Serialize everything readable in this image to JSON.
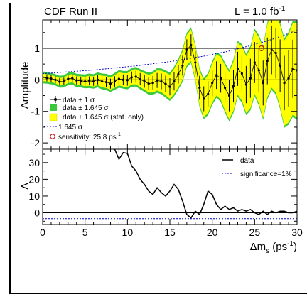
{
  "chart_data": [
    {
      "type": "line",
      "top_left_label": "CDF Run II",
      "top_right_label": "L = 1.0 fb",
      "top_right_label_sup": "-1",
      "ylabel": "Amplitude",
      "xlim": [
        0,
        30
      ],
      "ylim": [
        -2.2,
        1.9
      ],
      "y_ticks": [
        "1",
        "0",
        "-1",
        "-2"
      ],
      "y_tick_values": [
        1,
        0,
        -1,
        -2
      ],
      "reference_lines": [
        0,
        1
      ],
      "colors": {
        "band_1645": "#3cc83c",
        "band_stat": "#ffff00",
        "data": "#000000",
        "sigma_line": "#0000cc",
        "sensitivity": "#cc0000"
      },
      "legend": {
        "position": "lower-left",
        "items": [
          {
            "key": "data_err",
            "text": "data ± 1 σ"
          },
          {
            "key": "band_1645",
            "text": "data ± 1.645 σ"
          },
          {
            "key": "band_stat",
            "text": "data ± 1.645 σ (stat. only)"
          },
          {
            "key": "sigma_line",
            "text": "1.645 σ"
          },
          {
            "key": "sensitivity",
            "text": "sensitivity: 25.8 ps",
            "sup": "-1"
          }
        ]
      },
      "x": [
        0,
        0.5,
        1,
        1.5,
        2,
        2.5,
        3,
        3.5,
        4,
        4.5,
        5,
        5.5,
        6,
        6.5,
        7,
        7.5,
        8,
        8.5,
        9,
        9.5,
        10,
        10.5,
        11,
        11.5,
        12,
        12.5,
        13,
        13.5,
        14,
        14.5,
        15,
        15.5,
        16,
        16.5,
        17,
        17.5,
        18,
        18.5,
        19,
        19.5,
        20,
        20.5,
        21,
        21.5,
        22,
        22.5,
        23,
        23.5,
        24,
        24.5,
        25,
        25.5,
        26,
        26.5,
        27,
        27.5,
        28,
        28.5,
        29,
        29.5,
        30
      ],
      "amplitude": [
        0.08,
        0.06,
        0.04,
        0.0,
        -0.06,
        -0.05,
        0.03,
        0.05,
        -0.02,
        -0.03,
        -0.05,
        -0.03,
        -0.05,
        0.0,
        -0.05,
        -0.07,
        -0.12,
        -0.05,
        0.03,
        0.0,
        -0.01,
        0.08,
        0.1,
        0.02,
        -0.05,
        -0.12,
        -0.1,
        -0.02,
        -0.05,
        -0.13,
        -0.22,
        -0.05,
        0.18,
        0.45,
        0.95,
        1.1,
        0.55,
        -0.25,
        -0.6,
        -0.45,
        -0.1,
        0.15,
        0.05,
        -0.25,
        -0.5,
        -0.2,
        0.35,
        0.2,
        -0.15,
        0.05,
        0.55,
        0.3,
        -0.1,
        0.6,
        0.95,
        0.85,
        0.45,
        -0.1,
        0.05,
        0.35,
        0.3
      ],
      "stat_err_1645": [
        0.12,
        0.11,
        0.11,
        0.11,
        0.12,
        0.12,
        0.13,
        0.13,
        0.14,
        0.14,
        0.15,
        0.16,
        0.16,
        0.17,
        0.18,
        0.19,
        0.19,
        0.2,
        0.21,
        0.21,
        0.22,
        0.23,
        0.24,
        0.25,
        0.26,
        0.28,
        0.3,
        0.32,
        0.34,
        0.36,
        0.38,
        0.4,
        0.42,
        0.45,
        0.48,
        0.5,
        0.52,
        0.55,
        0.58,
        0.6,
        0.62,
        0.65,
        0.68,
        0.72,
        0.75,
        0.78,
        0.82,
        0.86,
        0.9,
        0.95,
        1.0,
        1.05,
        1.1,
        1.15,
        1.2,
        1.25,
        1.3,
        1.35,
        1.4,
        1.45,
        1.5
      ],
      "total_err_1645": [
        0.19,
        0.18,
        0.18,
        0.18,
        0.19,
        0.19,
        0.2,
        0.2,
        0.21,
        0.21,
        0.22,
        0.23,
        0.23,
        0.24,
        0.25,
        0.26,
        0.26,
        0.27,
        0.28,
        0.28,
        0.29,
        0.3,
        0.31,
        0.32,
        0.33,
        0.35,
        0.37,
        0.39,
        0.41,
        0.43,
        0.45,
        0.47,
        0.49,
        0.52,
        0.55,
        0.57,
        0.59,
        0.62,
        0.65,
        0.67,
        0.69,
        0.72,
        0.75,
        0.79,
        0.82,
        0.85,
        0.89,
        0.93,
        0.97,
        1.02,
        1.07,
        1.12,
        1.17,
        1.22,
        1.27,
        1.32,
        1.37,
        1.42,
        1.47,
        1.52,
        1.57
      ],
      "sigma_1645_line": [
        0.2,
        0.21,
        0.22,
        0.24,
        0.25,
        0.27,
        0.28,
        0.3,
        0.31,
        0.33,
        0.35,
        0.37,
        0.39,
        0.41,
        0.43,
        0.45,
        0.48,
        0.5,
        0.53,
        0.55,
        0.58,
        0.61,
        0.64,
        0.67,
        0.71,
        0.74,
        0.78,
        0.82,
        0.86,
        0.9,
        0.95,
        1.0,
        1.05,
        1.1,
        1.16,
        1.22,
        1.28,
        1.35,
        1.42,
        1.5,
        1.58
      ],
      "sigma_line_x": [
        0,
        0.75,
        1.5,
        2.25,
        3,
        3.75,
        4.5,
        5.25,
        6,
        6.75,
        7.5,
        8.25,
        9,
        9.75,
        10.5,
        11.25,
        12,
        12.75,
        13.5,
        14.25,
        15,
        15.75,
        16.5,
        17.25,
        18,
        18.75,
        19.5,
        20.25,
        21,
        21.75,
        22.5,
        23.25,
        24,
        24.75,
        25.5,
        26.25,
        27,
        27.75,
        28.5,
        29.25,
        30
      ],
      "sensitivity_marker": {
        "x": 25.8,
        "y": 1.0
      }
    },
    {
      "type": "line",
      "ylabel": "Λ",
      "xlabel": "Δm",
      "xlabel_sub": "s",
      "xlabel_unit": " (ps",
      "xlabel_unit_sup": "-1",
      "xlabel_close": ")",
      "xlim": [
        0,
        30
      ],
      "ylim": [
        -7,
        38
      ],
      "x_ticks": [
        "0",
        "5",
        "10",
        "15",
        "20",
        "25",
        "30"
      ],
      "x_tick_values": [
        0,
        5,
        10,
        15,
        20,
        25,
        30
      ],
      "y_ticks": [
        "30",
        "20",
        "10",
        "0"
      ],
      "y_tick_values": [
        30,
        20,
        10,
        0
      ],
      "legend": {
        "position": "top-right",
        "items": [
          {
            "key": "data",
            "text": "data"
          },
          {
            "key": "significance",
            "text": "significance=1%"
          }
        ]
      },
      "series": [
        {
          "name": "data",
          "x": [
            8.5,
            9,
            9.5,
            10,
            10.5,
            11,
            11.5,
            12,
            12.5,
            13,
            13.5,
            14,
            14.5,
            15,
            15.5,
            16,
            16.5,
            17,
            17.5,
            18,
            18.5,
            19,
            19.5,
            20,
            20.5,
            21,
            21.5,
            22,
            22.5,
            23,
            23.5,
            24,
            24.5,
            25,
            25.5,
            26,
            26.5,
            27,
            27.5,
            28,
            28.5,
            29,
            29.5,
            30
          ],
          "y": [
            38,
            32,
            36,
            35.5,
            28,
            25,
            20,
            17,
            13,
            11,
            15,
            12,
            10,
            13,
            17,
            14,
            7,
            -1,
            -3,
            1,
            -1,
            5,
            13,
            11,
            5,
            2,
            4,
            2,
            3,
            1,
            2,
            1,
            2,
            0,
            -1,
            1,
            -1,
            1,
            0,
            1,
            1,
            0,
            0,
            1
          ]
        },
        {
          "name": "significance=1%",
          "x": [
            0,
            30
          ],
          "y": [
            -3.5,
            -3.5
          ]
        }
      ],
      "reference_lines": [
        0
      ]
    }
  ]
}
